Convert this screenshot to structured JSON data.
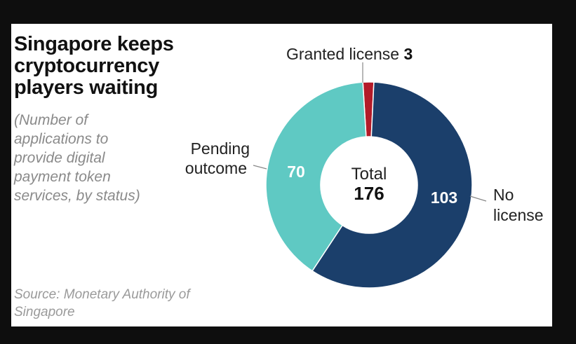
{
  "title": "Singapore keeps cryptocurrency players waiting",
  "subtitle": "(Number of applications to provide digital payment token services, by status)",
  "source": "Source: Monetary Authority of Singapore",
  "chart_data": {
    "type": "pie",
    "title": "Singapore keeps cryptocurrency players waiting",
    "center_label": "Total",
    "total": 176,
    "slices": [
      {
        "name": "Granted license",
        "value": 3,
        "color": "#b31b29"
      },
      {
        "name": "No license",
        "value": 103,
        "color": "#1b3f6b"
      },
      {
        "name": "Pending outcome",
        "value": 70,
        "color": "#5fc9c3"
      }
    ],
    "labels": {
      "granted": "Granted license",
      "no_license_line1": "No",
      "no_license_line2": "license",
      "pending_line1": "Pending",
      "pending_line2": "outcome"
    }
  }
}
